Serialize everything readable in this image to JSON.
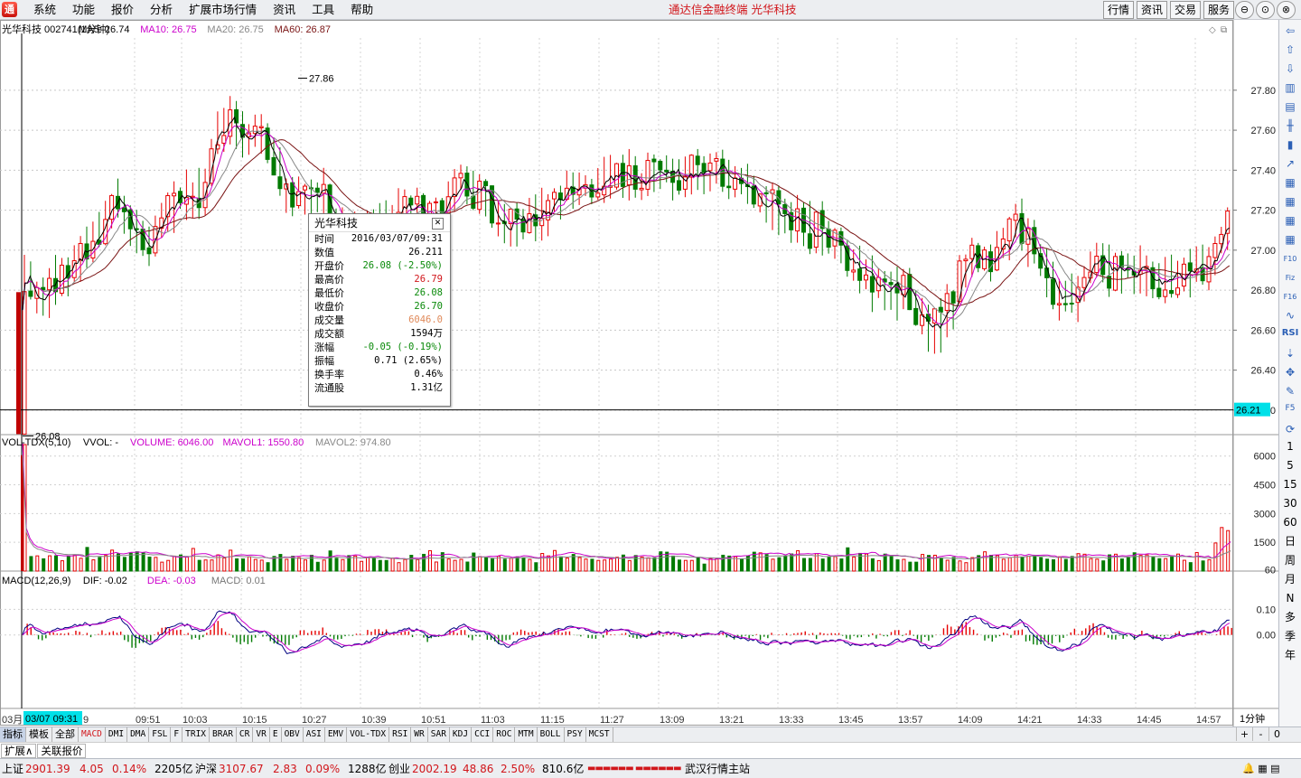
{
  "menubar": {
    "logo_letter": "通",
    "items": [
      "系统",
      "功能",
      "报价",
      "分析",
      "扩展市场行情",
      "资讯",
      "工具",
      "帮助"
    ],
    "center_title": "通达信金融终端    光华科技",
    "right_buttons": [
      "行情",
      "资讯",
      "交易",
      "服务"
    ],
    "window_buttons": [
      "⊖",
      "⊙",
      "⊗"
    ]
  },
  "header": {
    "stock": "光华科技 002741(1分钟)",
    "ma5": "MA5: 26.74",
    "ma10": "MA10: 26.75",
    "ma20": "MA20: 26.75",
    "ma60": "MA60: 26.87",
    "high_label": "27.86",
    "low_label": "26.08",
    "cursor_price": "26.21",
    "cursor_time": "03/07 09:31"
  },
  "volume_header": {
    "name": "VOL-TDX(5,10)",
    "vvol": "VVOL: -",
    "volume": "VOLUME: 6046.00",
    "mavol1": "MAVOL1: 1550.80",
    "mavol2": "MAVOL2: 974.80"
  },
  "macd_header": {
    "name": "MACD(12,26,9)",
    "dif": "DIF: -0.02",
    "dea": "DEA: -0.03",
    "macd": "MACD: 0.01"
  },
  "price_axis": [
    "27.80",
    "27.60",
    "27.40",
    "27.20",
    "27.00",
    "26.80",
    "26.60",
    "26.40",
    "26.20"
  ],
  "volume_axis": [
    "6000",
    "4500",
    "3000",
    "1500",
    "60"
  ],
  "macd_axis": [
    "0.10",
    "0.00"
  ],
  "time_axis": [
    "03月",
    "9",
    "09:51",
    "10:03",
    "10:15",
    "10:27",
    "10:39",
    "10:51",
    "11:03",
    "11:15",
    "11:27",
    "13:09",
    "13:21",
    "13:33",
    "13:45",
    "13:57",
    "14:09",
    "14:21",
    "14:33",
    "14:45",
    "14:57"
  ],
  "period_label": "1分钟",
  "tooltip": {
    "title": "光华科技",
    "rows": [
      {
        "label": "时间",
        "value": "2016/03/07/09:31",
        "color": "#000000"
      },
      {
        "label": "数值",
        "value": "26.211",
        "color": "#000000"
      },
      {
        "label": "开盘价",
        "value": "26.08 (-2.50%)",
        "color": "#0a8a0a"
      },
      {
        "label": "最高价",
        "value": "26.79",
        "color": "#d1161b"
      },
      {
        "label": "最低价",
        "value": "26.08",
        "color": "#0a8a0a"
      },
      {
        "label": "收盘价",
        "value": "26.70",
        "color": "#0a8a0a"
      },
      {
        "label": "成交量",
        "value": "6046.0",
        "color": "#e08a5a"
      },
      {
        "label": "成交额",
        "value": "1594万",
        "color": "#000000"
      },
      {
        "label": "涨幅",
        "value": "-0.05 (-0.19%)",
        "color": "#0a8a0a"
      },
      {
        "label": "振幅",
        "value": "0.71 (2.65%)",
        "color": "#000000"
      },
      {
        "label": "换手率",
        "value": "0.46%",
        "color": "#000000"
      },
      {
        "label": "流通股",
        "value": "1.31亿",
        "color": "#000000"
      }
    ]
  },
  "right_toolbar": {
    "icons": [
      "arrow-left-icon",
      "arrow-up-icon",
      "arrow-down-icon",
      "split-left-icon",
      "split-right-icon",
      "candle-icon",
      "bars-icon",
      "line-chart-icon",
      "grid-icon",
      "grid-alt-icon",
      "grid2-icon",
      "table-icon",
      "f10-icon",
      "fiz-icon",
      "f16-icon",
      "rsi-wave-icon"
    ],
    "texts_top": [
      "RSI"
    ],
    "function_keys": [
      "F5"
    ],
    "periods": [
      "1",
      "5",
      "15",
      "30",
      "60",
      "日",
      "周",
      "月",
      "N",
      "多",
      "季",
      "年"
    ]
  },
  "tabs": {
    "panel_tabs": [
      "指标",
      "模板",
      "全部"
    ],
    "indicators": [
      "MACD",
      "DMI",
      "DMA",
      "FSL",
      "F",
      "TRIX",
      "BRAR",
      "CR",
      "VR",
      "E",
      "OBV",
      "ASI",
      "EMV",
      "VOL-TDX",
      "RSI",
      "WR",
      "SAR",
      "KDJ",
      "CCI",
      "ROC",
      "MTM",
      "BOLL",
      "PSY",
      "MCST"
    ],
    "controls": [
      "+",
      "-",
      "0"
    ]
  },
  "sub_tabs": [
    "扩展∧",
    "关联报价"
  ],
  "status": {
    "sh_name": "上证",
    "sh_value": "2901.39",
    "sh_change": "4.05",
    "sh_pct": "0.14%",
    "sh_amount": "2205亿",
    "sz_name": "沪深",
    "sz_value": "3107.67",
    "sz_change": "2.83",
    "sz_pct": "0.09%",
    "sz_amount": "1288亿",
    "cy_name": "创业",
    "cy_value": "2002.19",
    "cy_change": "48.86",
    "cy_pct": "2.50%",
    "cy_amount": "810.6亿",
    "station": "武汉行情主站"
  },
  "chart_data": {
    "type": "candlestick",
    "title": "光华科技 002741(1分钟)",
    "ylim": [
      26.1,
      27.98
    ],
    "high": 27.86,
    "low": 26.08,
    "ma_legend": [
      "MA5",
      "MA10",
      "MA20",
      "MA60"
    ],
    "volume_ylim": [
      0,
      6600
    ],
    "macd_ylim": [
      -0.27,
      0.19
    ],
    "colors": {
      "up": "#e60000",
      "down": "#007a00",
      "ma5": "#000000",
      "ma10": "#cc00cc",
      "ma20": "#888888",
      "ma60": "#7a1414",
      "dif": "#000080",
      "dea": "#cc00cc"
    }
  }
}
